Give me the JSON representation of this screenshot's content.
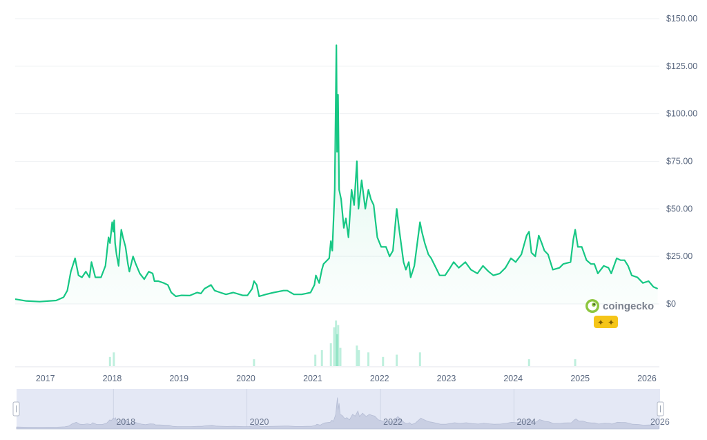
{
  "chart_data": {
    "type": "area",
    "title": "",
    "xlabel": "",
    "ylabel": "",
    "y_unit": "$",
    "ylim": [
      0,
      150
    ],
    "y_ticks": [
      "$0",
      "$25.00",
      "$50.00",
      "$75.00",
      "$100.00",
      "$125.00",
      "$150.00"
    ],
    "y_tick_values": [
      0,
      25,
      50,
      75,
      100,
      125,
      150
    ],
    "x_ticks": [
      "2017",
      "2018",
      "2019",
      "2020",
      "2021",
      "2022",
      "2023",
      "2024",
      "2025",
      "2026"
    ],
    "x_tick_dates": [
      "2017-01-01",
      "2018-01-01",
      "2019-01-01",
      "2020-01-01",
      "2021-01-01",
      "2022-01-01",
      "2023-01-01",
      "2024-01-01",
      "2025-01-01",
      "2026-01-01"
    ],
    "navigator_ticks": [
      "2018",
      "2020",
      "2022",
      "2024",
      "2026"
    ],
    "navigator_tick_dates": [
      "2018-01-01",
      "2020-01-01",
      "2022-01-01",
      "2024-01-01",
      "2026-01-01"
    ],
    "xlim": [
      "2016-07-20",
      "2026-03-10"
    ],
    "line_color": "#16c784",
    "series": [
      {
        "values": [
          [
            "2016-07-20",
            2.5
          ],
          [
            "2016-09-15",
            1.6
          ],
          [
            "2016-12-01",
            1.2
          ],
          [
            "2017-03-01",
            1.8
          ],
          [
            "2017-04-10",
            3.5
          ],
          [
            "2017-05-01",
            7
          ],
          [
            "2017-05-20",
            17
          ],
          [
            "2017-06-12",
            24
          ],
          [
            "2017-07-01",
            15
          ],
          [
            "2017-07-20",
            14
          ],
          [
            "2017-08-10",
            17
          ],
          [
            "2017-08-30",
            14
          ],
          [
            "2017-09-10",
            22
          ],
          [
            "2017-10-01",
            14
          ],
          [
            "2017-11-01",
            14
          ],
          [
            "2017-11-25",
            20
          ],
          [
            "2017-12-12",
            35
          ],
          [
            "2017-12-20",
            32
          ],
          [
            "2018-01-01",
            43
          ],
          [
            "2018-01-07",
            38
          ],
          [
            "2018-01-12",
            44
          ],
          [
            "2018-01-17",
            32
          ],
          [
            "2018-01-25",
            26
          ],
          [
            "2018-02-05",
            20
          ],
          [
            "2018-02-12",
            30
          ],
          [
            "2018-02-20",
            39
          ],
          [
            "2018-03-01",
            35
          ],
          [
            "2018-03-15",
            30
          ],
          [
            "2018-03-28",
            21
          ],
          [
            "2018-04-05",
            17
          ],
          [
            "2018-04-25",
            25
          ],
          [
            "2018-05-10",
            21
          ],
          [
            "2018-06-01",
            16
          ],
          [
            "2018-06-25",
            13
          ],
          [
            "2018-07-20",
            17
          ],
          [
            "2018-08-10",
            16
          ],
          [
            "2018-08-20",
            12
          ],
          [
            "2018-09-10",
            12
          ],
          [
            "2018-10-10",
            11
          ],
          [
            "2018-11-01",
            10
          ],
          [
            "2018-11-20",
            6
          ],
          [
            "2018-12-15",
            4
          ],
          [
            "2019-01-15",
            4.5
          ],
          [
            "2019-03-01",
            4.4
          ],
          [
            "2019-04-10",
            6
          ],
          [
            "2019-05-01",
            5.5
          ],
          [
            "2019-05-20",
            8
          ],
          [
            "2019-06-25",
            10
          ],
          [
            "2019-07-15",
            7
          ],
          [
            "2019-08-15",
            6
          ],
          [
            "2019-09-15",
            5
          ],
          [
            "2019-10-25",
            6
          ],
          [
            "2019-12-15",
            4.5
          ],
          [
            "2020-01-10",
            4.5
          ],
          [
            "2020-02-05",
            8
          ],
          [
            "2020-02-15",
            12
          ],
          [
            "2020-03-01",
            10
          ],
          [
            "2020-03-14",
            4
          ],
          [
            "2020-04-20",
            5
          ],
          [
            "2020-06-01",
            6
          ],
          [
            "2020-07-25",
            7
          ],
          [
            "2020-08-15",
            7
          ],
          [
            "2020-09-20",
            5
          ],
          [
            "2020-11-01",
            5
          ],
          [
            "2020-11-25",
            5.5
          ],
          [
            "2020-12-20",
            6
          ],
          [
            "2021-01-10",
            10
          ],
          [
            "2021-01-18",
            15
          ],
          [
            "2021-02-05",
            11
          ],
          [
            "2021-02-20",
            18
          ],
          [
            "2021-03-01",
            21
          ],
          [
            "2021-04-01",
            24
          ],
          [
            "2021-04-10",
            33
          ],
          [
            "2021-04-18",
            28
          ],
          [
            "2021-05-01",
            60
          ],
          [
            "2021-05-10",
            136
          ],
          [
            "2021-05-14",
            80
          ],
          [
            "2021-05-19",
            110
          ],
          [
            "2021-05-25",
            60
          ],
          [
            "2021-06-05",
            55
          ],
          [
            "2021-06-20",
            40
          ],
          [
            "2021-07-01",
            45
          ],
          [
            "2021-07-15",
            35
          ],
          [
            "2021-08-01",
            60
          ],
          [
            "2021-08-15",
            52
          ],
          [
            "2021-08-30",
            75
          ],
          [
            "2021-09-08",
            50
          ],
          [
            "2021-09-25",
            65
          ],
          [
            "2021-10-15",
            50
          ],
          [
            "2021-11-01",
            60
          ],
          [
            "2021-11-15",
            55
          ],
          [
            "2021-11-30",
            52
          ],
          [
            "2021-12-20",
            35
          ],
          [
            "2022-01-10",
            30
          ],
          [
            "2022-02-05",
            30
          ],
          [
            "2022-02-25",
            25
          ],
          [
            "2022-03-15",
            28
          ],
          [
            "2022-04-05",
            50
          ],
          [
            "2022-04-20",
            38
          ],
          [
            "2022-05-12",
            22
          ],
          [
            "2022-05-25",
            18
          ],
          [
            "2022-06-10",
            22
          ],
          [
            "2022-06-20",
            14
          ],
          [
            "2022-07-10",
            20
          ],
          [
            "2022-08-10",
            43
          ],
          [
            "2022-08-20",
            38
          ],
          [
            "2022-09-05",
            32
          ],
          [
            "2022-09-25",
            26
          ],
          [
            "2022-10-10",
            24
          ],
          [
            "2022-11-10",
            18
          ],
          [
            "2022-11-25",
            15
          ],
          [
            "2022-12-25",
            15
          ],
          [
            "2023-01-15",
            18
          ],
          [
            "2023-02-10",
            22
          ],
          [
            "2023-03-10",
            19
          ],
          [
            "2023-04-15",
            22
          ],
          [
            "2023-05-15",
            18
          ],
          [
            "2023-06-20",
            16
          ],
          [
            "2023-07-20",
            20
          ],
          [
            "2023-08-20",
            17
          ],
          [
            "2023-09-15",
            15
          ],
          [
            "2023-10-20",
            16
          ],
          [
            "2023-11-20",
            19
          ],
          [
            "2023-12-20",
            24
          ],
          [
            "2024-01-15",
            22
          ],
          [
            "2024-02-15",
            26
          ],
          [
            "2024-03-15",
            36
          ],
          [
            "2024-03-28",
            38
          ],
          [
            "2024-04-10",
            27
          ],
          [
            "2024-05-01",
            25
          ],
          [
            "2024-05-20",
            36
          ],
          [
            "2024-06-05",
            32
          ],
          [
            "2024-06-20",
            28
          ],
          [
            "2024-07-10",
            26
          ],
          [
            "2024-08-05",
            18
          ],
          [
            "2024-09-10",
            19
          ],
          [
            "2024-10-01",
            21
          ],
          [
            "2024-11-10",
            22
          ],
          [
            "2024-11-25",
            34
          ],
          [
            "2024-12-05",
            39
          ],
          [
            "2024-12-20",
            30
          ],
          [
            "2025-01-10",
            30
          ],
          [
            "2025-02-05",
            23
          ],
          [
            "2025-03-01",
            21
          ],
          [
            "2025-03-20",
            21
          ],
          [
            "2025-04-08",
            16
          ],
          [
            "2025-05-10",
            20
          ],
          [
            "2025-06-05",
            19
          ],
          [
            "2025-06-20",
            16
          ],
          [
            "2025-07-20",
            24
          ],
          [
            "2025-08-10",
            23
          ],
          [
            "2025-09-01",
            23
          ],
          [
            "2025-09-20",
            20
          ],
          [
            "2025-10-10",
            15
          ],
          [
            "2025-11-10",
            14
          ],
          [
            "2025-12-10",
            11
          ],
          [
            "2026-01-10",
            12
          ],
          [
            "2026-02-05",
            9
          ],
          [
            "2026-03-01",
            8
          ]
        ]
      }
    ],
    "volume": [
      [
        "2017-12-20",
        0.2
      ],
      [
        "2018-01-10",
        0.3
      ],
      [
        "2020-02-15",
        0.15
      ],
      [
        "2021-01-15",
        0.25
      ],
      [
        "2021-02-20",
        0.35
      ],
      [
        "2021-04-10",
        0.5
      ],
      [
        "2021-04-28",
        0.85
      ],
      [
        "2021-05-08",
        1.0
      ],
      [
        "2021-05-15",
        0.7
      ],
      [
        "2021-05-20",
        0.9
      ],
      [
        "2021-06-01",
        0.4
      ],
      [
        "2021-08-30",
        0.45
      ],
      [
        "2021-09-10",
        0.35
      ],
      [
        "2021-11-01",
        0.3
      ],
      [
        "2022-01-20",
        0.2
      ],
      [
        "2022-04-05",
        0.25
      ],
      [
        "2022-08-10",
        0.3
      ],
      [
        "2024-03-28",
        0.15
      ],
      [
        "2024-12-05",
        0.15
      ]
    ]
  },
  "watermark": {
    "brand": "coingecko",
    "logo_icon": "gecko-logo-icon",
    "badge_icon": "sparkle-icon",
    "badge_color": "#f5c518"
  }
}
